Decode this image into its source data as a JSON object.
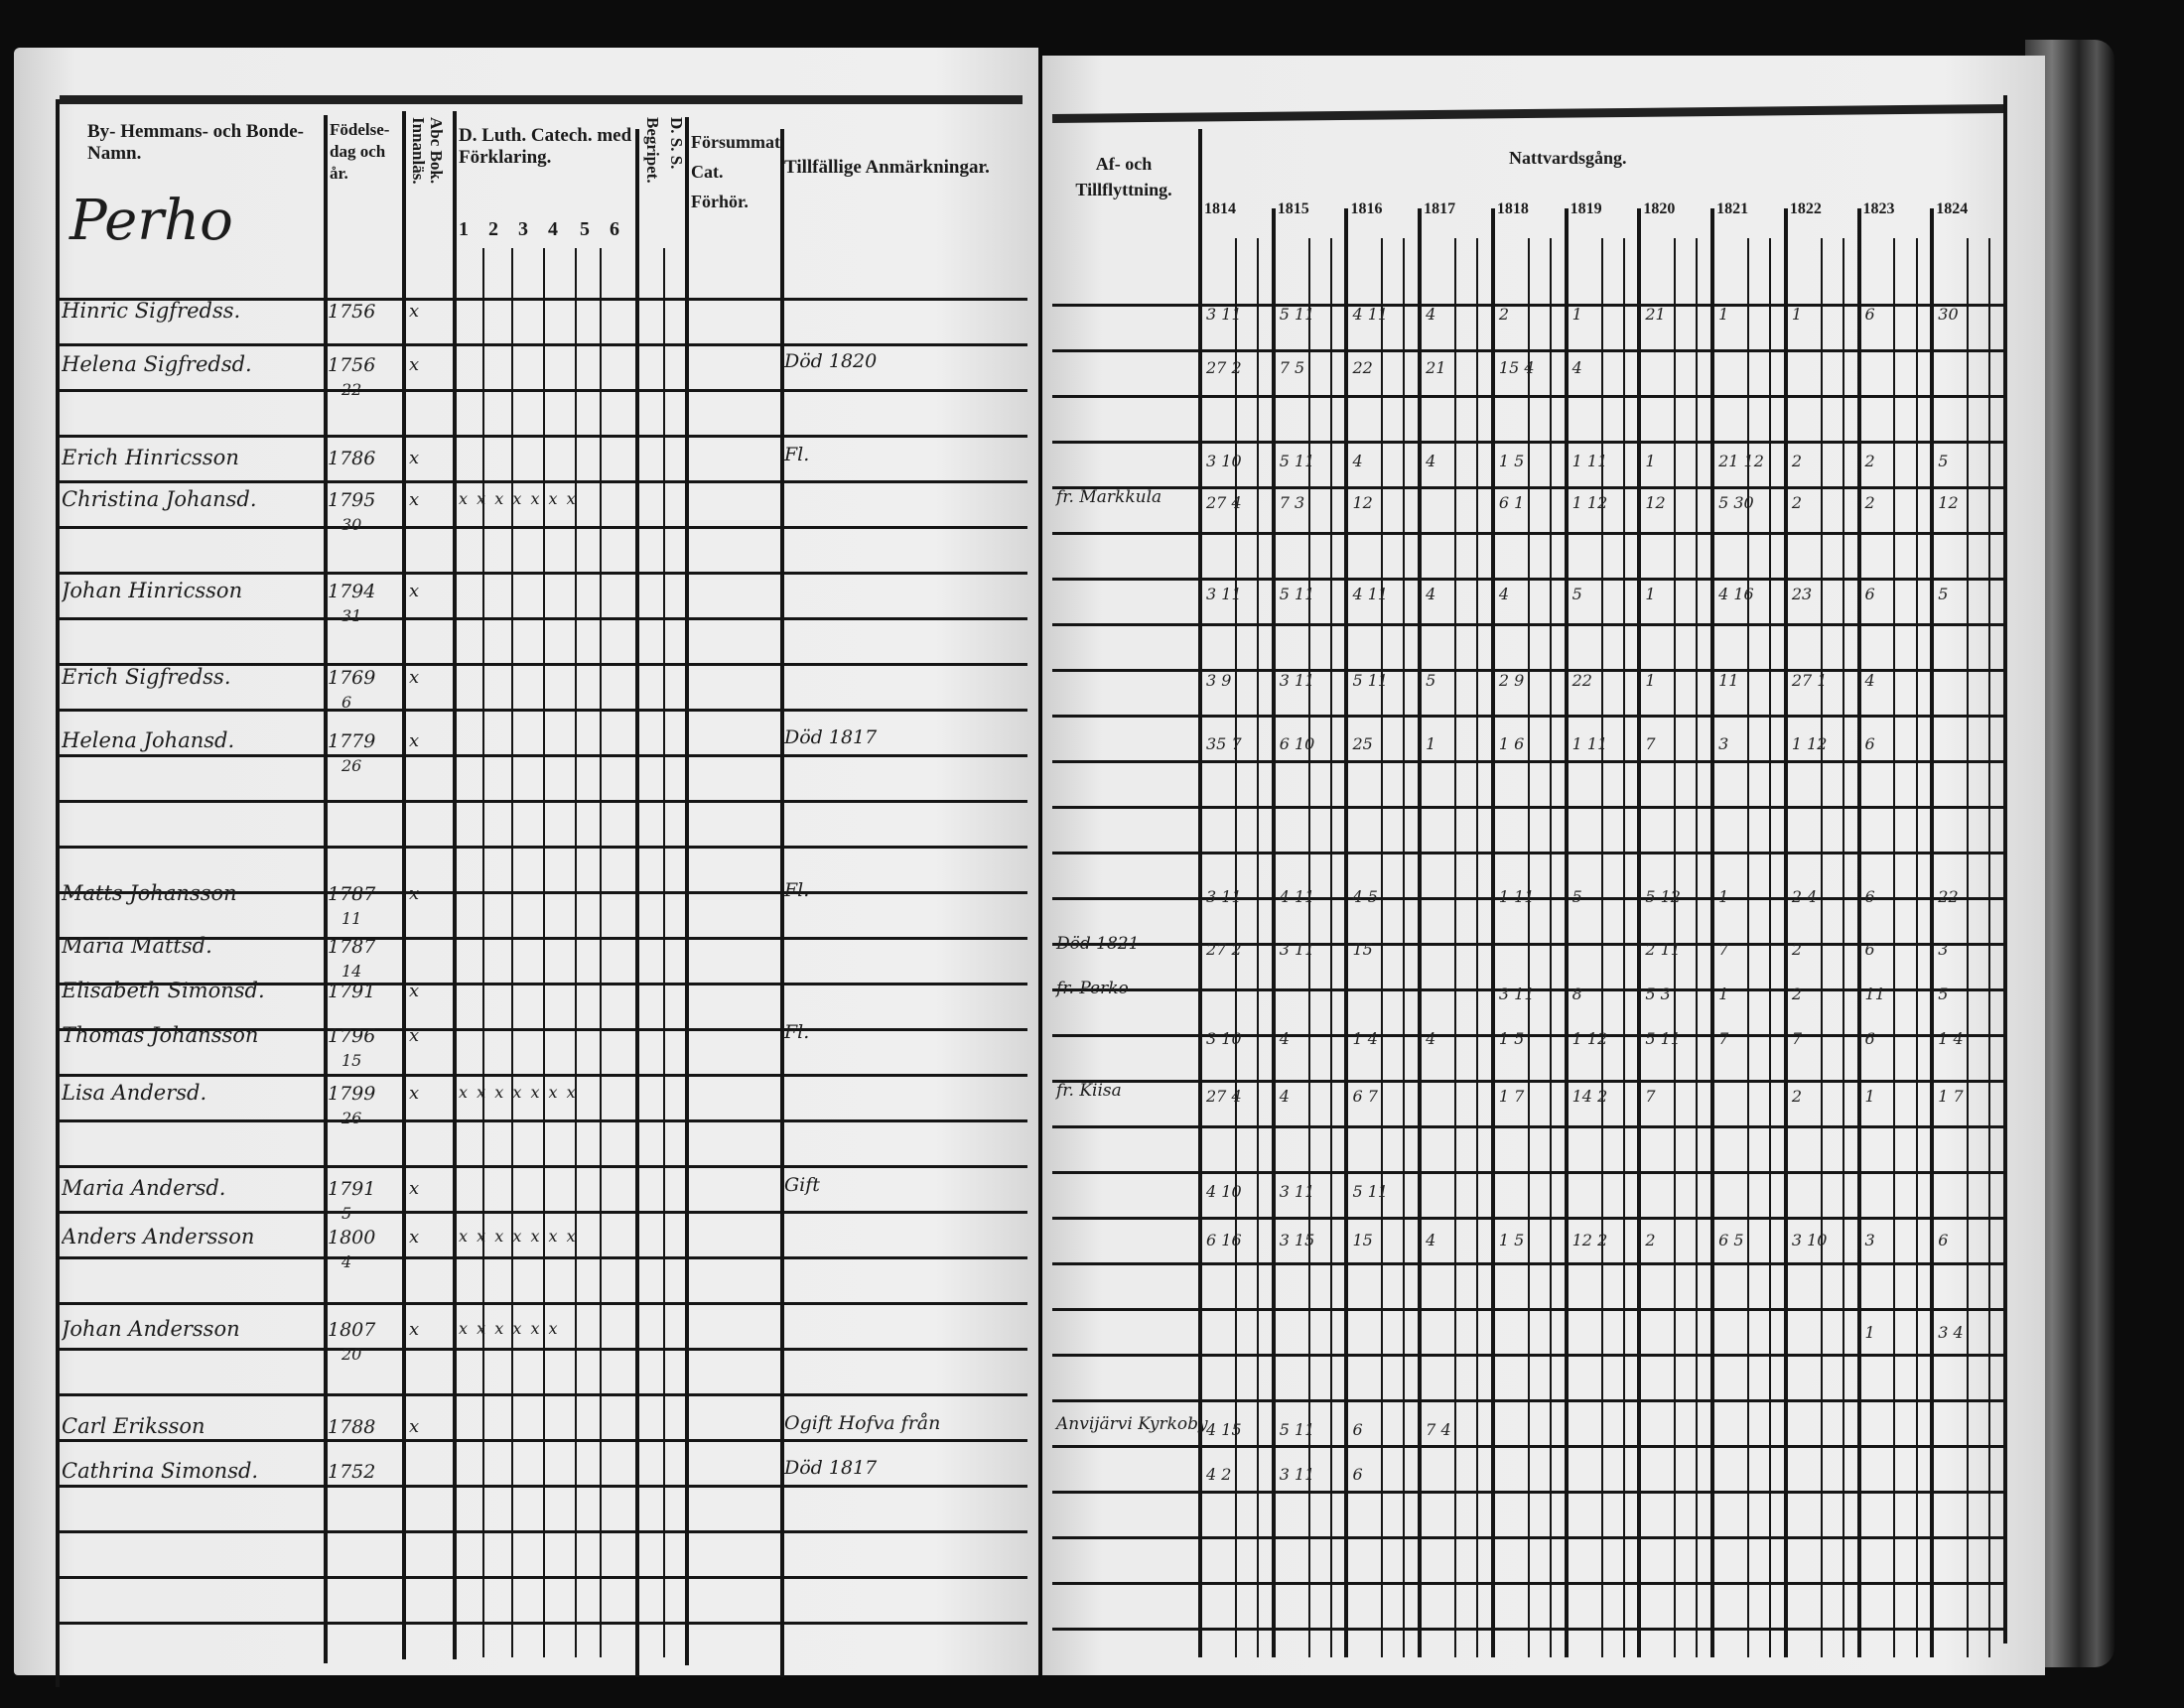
{
  "left_page": {
    "headers": {
      "name": "By- Hemmans- och Bonde-Namn.",
      "birth": "Födelse-dag och år.",
      "abc": "Abc Bok. Innanläs.",
      "catechism": "D. Luth. Catech. med Förklaring.",
      "catechism_sub": [
        "1",
        "2",
        "3",
        "4",
        "5",
        "6"
      ],
      "begripet": "Begripet.",
      "dss": "D. S. S.",
      "forsummat": "Försummat Cat. Förhör.",
      "remarks": "Tillfällige Anmärkningar."
    },
    "village": "Perho",
    "entries": [
      {
        "name": "Hinric Sigfredss.",
        "birth": "1756",
        "day": "",
        "abc": "x",
        "cat": "",
        "remark": ""
      },
      {
        "name": "Helena Sigfredsd.",
        "birth": "1756",
        "day": "22",
        "abc": "x",
        "cat": "",
        "remark": "Död 1820"
      },
      {
        "name": "Erich Hinricsson",
        "birth": "1786",
        "day": "",
        "abc": "x",
        "cat": "",
        "remark": "Fl."
      },
      {
        "name": "Christina Johansd.",
        "birth": "1795",
        "day": "30",
        "abc": "x",
        "cat": "x x x x x x x",
        "remark": ""
      },
      {
        "name": "Johan Hinricsson",
        "birth": "1794",
        "day": "31",
        "abc": "x",
        "cat": "",
        "remark": ""
      },
      {
        "name": "Erich Sigfredss.",
        "birth": "1769",
        "day": "6",
        "abc": "x",
        "cat": "",
        "remark": ""
      },
      {
        "name": "Helena Johansd.",
        "birth": "1779",
        "day": "26",
        "abc": "x",
        "cat": "",
        "remark": "Död 1817"
      },
      {
        "name": "Matts Johansson",
        "birth": "1787",
        "day": "11",
        "abc": "x",
        "cat": "",
        "remark": "Fl."
      },
      {
        "name": "Maria Mattsd.",
        "birth": "1787",
        "day": "14",
        "abc": "",
        "cat": "",
        "remark": ""
      },
      {
        "name": "Elisabeth Simonsd.",
        "birth": "1791",
        "day": "",
        "abc": "x",
        "cat": "",
        "remark": ""
      },
      {
        "name": "Thomas Johansson",
        "birth": "1796",
        "day": "15",
        "abc": "x",
        "cat": "",
        "remark": "Fl."
      },
      {
        "name": "Lisa Andersd.",
        "birth": "1799",
        "day": "26",
        "abc": "x",
        "cat": "x x x x x x x",
        "remark": ""
      },
      {
        "name": "Maria Andersd.",
        "birth": "1791",
        "day": "5",
        "abc": "x",
        "cat": "",
        "remark": "Gift"
      },
      {
        "name": "Anders Andersson",
        "birth": "1800",
        "day": "4",
        "abc": "x",
        "cat": "x x x x x x x",
        "remark": ""
      },
      {
        "name": "Johan Andersson",
        "birth": "1807",
        "day": "20",
        "abc": "x",
        "cat": "x x x x x x",
        "remark": ""
      },
      {
        "name": "Carl Eriksson",
        "birth": "1788",
        "day": "",
        "abc": "x",
        "cat": "",
        "remark": "Ogift Hofva från"
      },
      {
        "name": "Cathrina Simonsd.",
        "birth": "1752",
        "day": "",
        "abc": "",
        "cat": "",
        "remark": "Död 1817"
      }
    ]
  },
  "right_page": {
    "headers": {
      "moves": "Af- och Tillflyttning.",
      "communion": "Nattvardsgång.",
      "years": [
        "1814",
        "1815",
        "1816",
        "1817",
        "1818",
        "1819",
        "1820",
        "1821",
        "1822",
        "1823",
        "1824"
      ]
    },
    "moves": [
      {
        "row": 3,
        "text": "fr. Markkula"
      },
      {
        "row": 8,
        "text": "Död 1821"
      },
      {
        "row": 9,
        "text": "fr. Perko"
      },
      {
        "row": 11,
        "text": "fr. Kiisa"
      },
      {
        "row": 15,
        "text": "Anvijärvi Kyrkoby"
      }
    ],
    "communion": [
      [
        "3 11",
        "5 11",
        "4 11",
        "4",
        "2",
        "1",
        "21",
        "1",
        "1",
        "6",
        "30"
      ],
      [
        "27 2",
        "7 5",
        "22",
        "21",
        "15 4",
        "4",
        "",
        "",
        "",
        "",
        ""
      ],
      [
        "3 10",
        "5 11",
        "4",
        "4",
        "1 5",
        "1 11",
        "1",
        "21 12",
        "2",
        "2",
        "5"
      ],
      [
        "27 4",
        "7 3",
        "12",
        "",
        "6 1",
        "1 12",
        "12",
        "5 30",
        "2",
        "2",
        "12"
      ],
      [
        "3 11",
        "5 11",
        "4 11",
        "4",
        "4",
        "5",
        "1",
        "4 16",
        "23",
        "6",
        "5"
      ],
      [
        "3 9",
        "3 11",
        "5 11",
        "5",
        "2 9",
        "22",
        "1",
        "11",
        "27 1",
        "4",
        ""
      ],
      [
        "35 7",
        "6 10",
        "25",
        "1",
        "1 6",
        "1 11",
        "7",
        "3",
        "1 12",
        "6",
        ""
      ],
      [
        "3 11",
        "4 11",
        "4 5",
        "",
        "1 11",
        "5",
        "5 12",
        "1",
        "2 4",
        "6",
        "22"
      ],
      [
        "27 2",
        "3 11",
        "15",
        "",
        "",
        "",
        "2 11",
        "7",
        "2",
        "6",
        "3"
      ],
      [
        "",
        "",
        "",
        "",
        "3 11",
        "8",
        "5 3",
        "1",
        "2",
        "11",
        "5"
      ],
      [
        "3 10",
        "4",
        "1 4",
        "4",
        "1 5",
        "1 12",
        "5 11",
        "7",
        "7",
        "6",
        "1 4"
      ],
      [
        "27 4",
        "4",
        "6 7",
        "",
        "1 7",
        "14 2",
        "7",
        "",
        "2",
        "1",
        "1 7"
      ],
      [
        "4 10",
        "3 11",
        "5 11",
        "",
        "",
        "",
        "",
        "",
        "",
        "",
        ""
      ],
      [
        "6 16",
        "3 15",
        "15",
        "4",
        "1 5",
        "12 2",
        "2",
        "6 5",
        "3 10",
        "3",
        "6"
      ],
      [
        "",
        "",
        "",
        "",
        "",
        "",
        "",
        "",
        "",
        "1",
        "3 4"
      ],
      [
        "4 15",
        "5 11",
        "6",
        "7 4",
        "",
        "",
        "",
        "",
        "",
        "",
        ""
      ],
      [
        "4 2",
        "3 11",
        "6",
        "",
        "",
        "",
        "",
        "",
        "",
        "",
        ""
      ]
    ]
  },
  "colors": {
    "paper": "#ececec",
    "ink": "#151515",
    "background": "#0c0c0c"
  }
}
